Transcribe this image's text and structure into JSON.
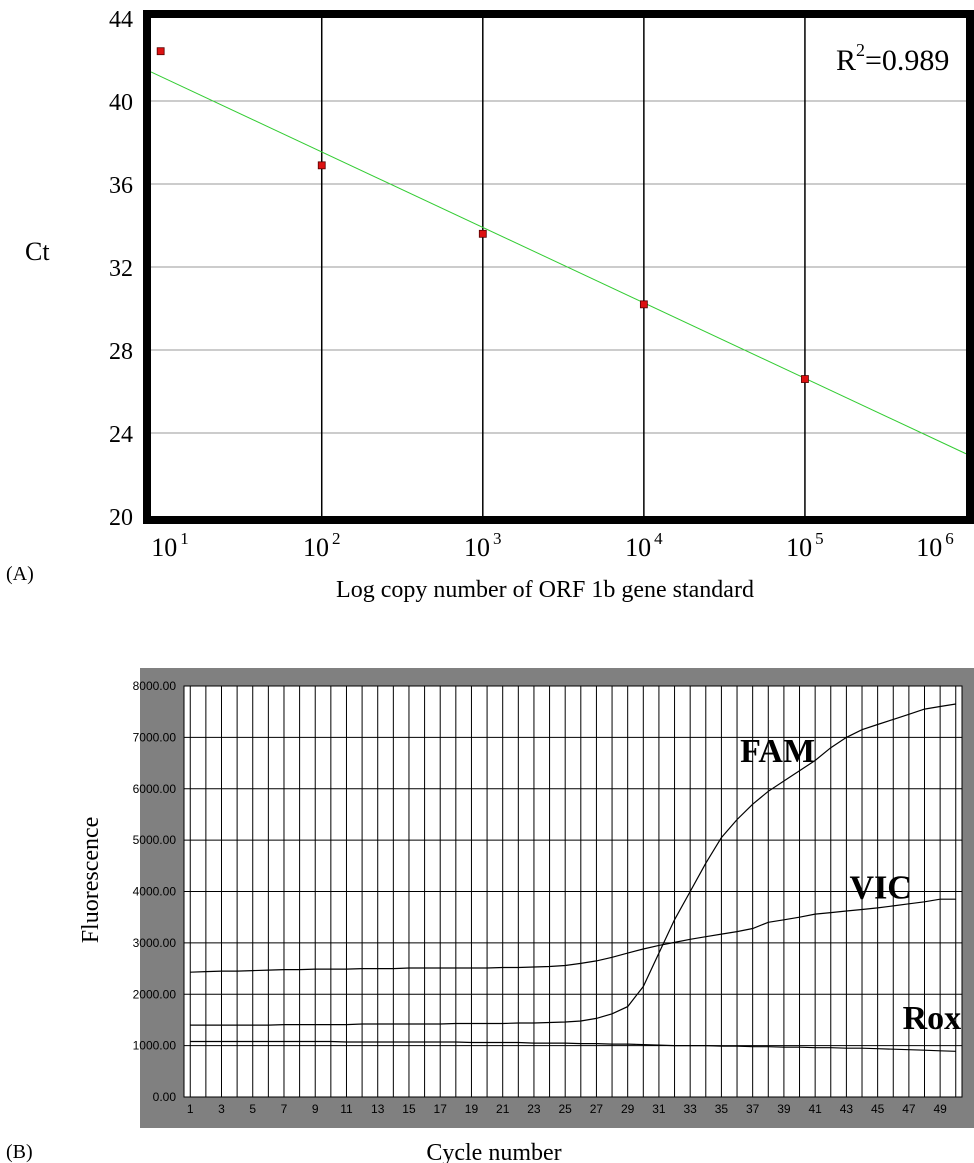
{
  "panel_a": {
    "label": "(A)",
    "r_squared_label": "R",
    "r_squared_sup": "2",
    "r_squared_value": "=0.989"
  },
  "panel_b": {
    "label": "(B)"
  },
  "chart_data": [
    {
      "type": "scatter",
      "ylabel": "Ct",
      "xlabel": "Log copy number of ORF 1b gene standard",
      "x_scale": "log10",
      "xlim": [
        10,
        1000000
      ],
      "ylim": [
        20,
        44
      ],
      "grid": true,
      "x_tick_labels": [
        {
          "base": "10",
          "exp": "1",
          "value": 10
        },
        {
          "base": "10",
          "exp": "2",
          "value": 100
        },
        {
          "base": "10",
          "exp": "3",
          "value": 1000
        },
        {
          "base": "10",
          "exp": "4",
          "value": 10000
        },
        {
          "base": "10",
          "exp": "5",
          "value": 100000
        },
        {
          "base": "10",
          "exp": "6",
          "value": 1000000
        }
      ],
      "y_tick_labels": [
        "44",
        "40",
        "36",
        "32",
        "28",
        "24",
        "20"
      ],
      "y_ticks": [
        44,
        40,
        36,
        32,
        28,
        24,
        20
      ],
      "points": [
        {
          "x": 10,
          "y": 42.4
        },
        {
          "x": 100,
          "y": 36.9
        },
        {
          "x": 1000,
          "y": 33.6
        },
        {
          "x": 10000,
          "y": 30.2
        },
        {
          "x": 100000,
          "y": 26.6
        }
      ],
      "fit_line": {
        "x": [
          10,
          1000000
        ],
        "y": [
          41.4,
          23.0
        ],
        "color": "#33cc33"
      },
      "colors": {
        "frame": "#000000",
        "point": "#dd1111",
        "grid": "#999999"
      }
    },
    {
      "type": "line",
      "ylabel": "Fluorescence",
      "xlabel": "Cycle number",
      "xlim": [
        1,
        50
      ],
      "ylim": [
        0,
        8000
      ],
      "grid": true,
      "y_tick_labels": [
        "8000.00",
        "7000.00",
        "6000.00",
        "5000.00",
        "4000.00",
        "3000.00",
        "2000.00",
        "1000.00",
        "0.00"
      ],
      "y_ticks": [
        8000,
        7000,
        6000,
        5000,
        4000,
        3000,
        2000,
        1000,
        0
      ],
      "x_tick_labels": [
        "1",
        "3",
        "5",
        "7",
        "9",
        "11",
        "13",
        "15",
        "17",
        "19",
        "21",
        "23",
        "25",
        "27",
        "29",
        "31",
        "33",
        "35",
        "37",
        "39",
        "41",
        "43",
        "45",
        "47",
        "49"
      ],
      "x_ticks": [
        1,
        3,
        5,
        7,
        9,
        11,
        13,
        15,
        17,
        19,
        21,
        23,
        25,
        27,
        29,
        31,
        33,
        35,
        37,
        39,
        41,
        43,
        45,
        47,
        49
      ],
      "x": [
        1,
        2,
        3,
        4,
        5,
        6,
        7,
        8,
        9,
        10,
        11,
        12,
        13,
        14,
        15,
        16,
        17,
        18,
        19,
        20,
        21,
        22,
        23,
        24,
        25,
        26,
        27,
        28,
        29,
        30,
        31,
        32,
        33,
        34,
        35,
        36,
        37,
        38,
        39,
        40,
        41,
        42,
        43,
        44,
        45,
        46,
        47,
        48,
        49,
        50
      ],
      "series": [
        {
          "name": "FAM",
          "values": [
            1400,
            1400,
            1400,
            1400,
            1400,
            1400,
            1410,
            1410,
            1410,
            1410,
            1410,
            1420,
            1420,
            1420,
            1420,
            1420,
            1420,
            1430,
            1430,
            1430,
            1430,
            1440,
            1440,
            1450,
            1460,
            1480,
            1530,
            1620,
            1760,
            2150,
            2800,
            3450,
            4000,
            4550,
            5050,
            5400,
            5700,
            5950,
            6150,
            6350,
            6550,
            6800,
            7000,
            7150,
            7250,
            7350,
            7450,
            7550,
            7600,
            7650
          ]
        },
        {
          "name": "VIC",
          "values": [
            2430,
            2440,
            2450,
            2450,
            2460,
            2470,
            2480,
            2480,
            2490,
            2490,
            2490,
            2500,
            2500,
            2500,
            2510,
            2510,
            2510,
            2510,
            2510,
            2510,
            2520,
            2520,
            2530,
            2540,
            2560,
            2600,
            2650,
            2720,
            2800,
            2880,
            2950,
            3010,
            3070,
            3120,
            3170,
            3220,
            3280,
            3400,
            3450,
            3500,
            3560,
            3590,
            3620,
            3650,
            3680,
            3720,
            3760,
            3800,
            3850,
            3850
          ]
        },
        {
          "name": "Rox",
          "values": [
            1080,
            1080,
            1080,
            1080,
            1080,
            1080,
            1080,
            1080,
            1080,
            1080,
            1070,
            1070,
            1070,
            1070,
            1070,
            1070,
            1070,
            1070,
            1060,
            1060,
            1060,
            1060,
            1050,
            1050,
            1050,
            1040,
            1040,
            1030,
            1030,
            1020,
            1010,
            1000,
            1000,
            1000,
            990,
            990,
            980,
            980,
            970,
            970,
            960,
            960,
            950,
            950,
            940,
            930,
            920,
            910,
            900,
            890
          ]
        }
      ],
      "series_label_positions": [
        {
          "name": "FAM",
          "x": 36.2,
          "y": 6520
        },
        {
          "name": "VIC",
          "x": 43.2,
          "y": 3860
        },
        {
          "name": "Rox",
          "x": 46.6,
          "y": 1320
        }
      ],
      "colors": {
        "background": "#808080",
        "plot": "#ffffff",
        "grid": "#000000",
        "line": "#000000"
      }
    }
  ]
}
